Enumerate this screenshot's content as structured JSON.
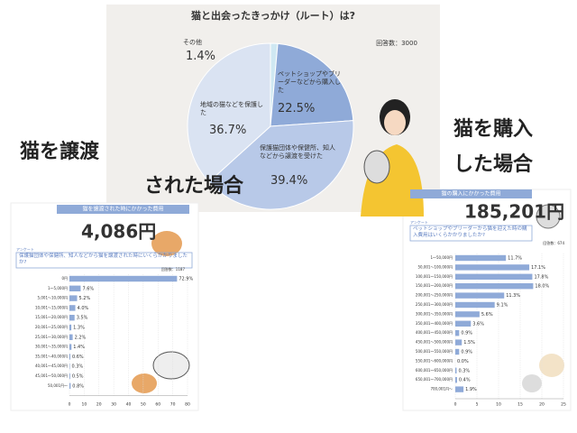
{
  "chart_data": [
    {
      "type": "pie",
      "title": "猫と出会ったきっかけ（ルート）は?",
      "note": "回答数：3000",
      "categories": [
        "その他",
        "ペットショップやブリーダーなどから購入した",
        "保護猫団体や保健所、知人などから譲渡を受けた",
        "地域の猫などを保護した"
      ],
      "values": [
        1.4,
        22.5,
        39.4,
        36.7
      ],
      "value_labels": [
        "1.4%",
        "22.5%",
        "39.4%",
        "36.7%"
      ],
      "colors": [
        "#cfe8f2",
        "#8faad8",
        "#b8c9e8",
        "#dae3f2"
      ]
    },
    {
      "type": "barh",
      "caption": [
        "猫を譲渡",
        "された場合"
      ],
      "title": "猫を譲渡された時にかかった費用",
      "headline": "4,086円",
      "badge": "アンケート",
      "question": "保護猫団体や保健所、知人などから猫を譲渡された時にいくらかかりましたか?",
      "note": "回答数：1187",
      "categories": [
        "0円",
        "1～5,000円",
        "5,001～10,000円",
        "10,001～15,000円",
        "15,001～20,000円",
        "20,001～25,000円",
        "25,001～30,000円",
        "30,001～35,000円",
        "35,001～40,000円",
        "40,001～45,000円",
        "45,001～50,000円",
        "50,001円～"
      ],
      "values": [
        72.9,
        7.6,
        5.2,
        4.0,
        3.5,
        1.3,
        2.2,
        1.4,
        0.6,
        0.3,
        0.5,
        0.8
      ],
      "value_labels": [
        "72.9%",
        "7.6%",
        "5.2%",
        "4.0%",
        "3.5%",
        "1.3%",
        "2.2%",
        "1.4%",
        "0.6%",
        "0.3%",
        "0.5%",
        "0.8%"
      ],
      "color": "#8faad8",
      "xlim": [
        0,
        80
      ],
      "xticks": [
        0,
        10,
        20,
        30,
        40,
        50,
        60,
        70,
        80
      ]
    },
    {
      "type": "barh",
      "caption": [
        "猫を購入",
        "した場合"
      ],
      "title": "猫の購入にかかった費用",
      "headline": "185,201円",
      "badge": "アンケート",
      "question": "ペットショップやブリーダーから猫を迎えた時の購入費用はいくらかかりましたか?",
      "note": "回答数：674",
      "categories": [
        "1～50,000円",
        "50,001～100,000円",
        "100,001～150,000円",
        "150,001～200,000円",
        "200,001～250,000円",
        "250,001～300,000円",
        "300,001～350,000円",
        "350,001～400,000円",
        "400,001～450,000円",
        "450,001～500,000円",
        "500,001～550,000円",
        "550,001～600,000円",
        "600,001～650,000円",
        "650,001～700,000円",
        "700,001円～"
      ],
      "values": [
        11.7,
        17.1,
        17.8,
        18.0,
        11.3,
        9.1,
        5.6,
        3.6,
        0.9,
        1.5,
        0.9,
        0.0,
        0.3,
        0.4,
        1.9
      ],
      "value_labels": [
        "11.7%",
        "17.1%",
        "17.8%",
        "18.0%",
        "11.3%",
        "9.1%",
        "5.6%",
        "3.6%",
        "0.9%",
        "1.5%",
        "0.9%",
        "0.0%",
        "0.3%",
        "0.4%",
        "1.9%"
      ],
      "color": "#8faad8",
      "xlim": [
        0,
        25
      ],
      "xticks": [
        0,
        5,
        10,
        15,
        20,
        25
      ]
    }
  ]
}
